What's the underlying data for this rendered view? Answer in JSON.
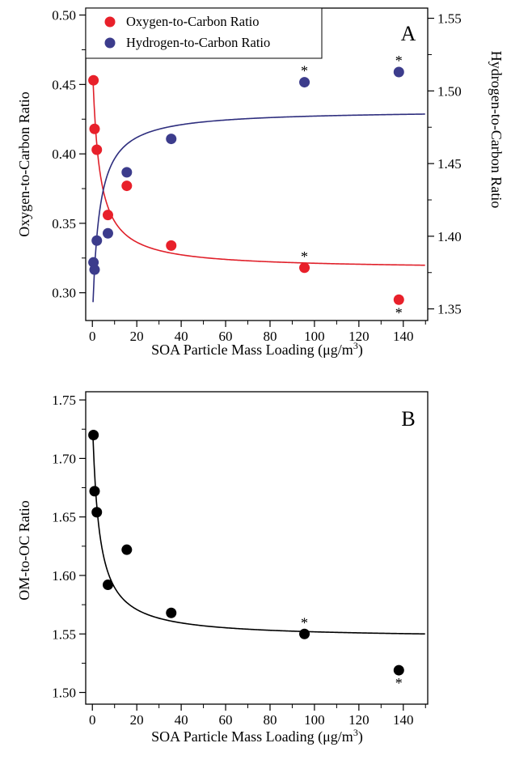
{
  "chart_data": [
    {
      "type": "scatter",
      "panel_label": "A",
      "xlabel_main": "SOA Particle Mass Loading (",
      "xlabel_unit": "μg/m",
      "xlabel_sup": "3",
      "xlabel_close": ")",
      "ylabel": "Oxygen-to-Carbon Ratio",
      "y2label": "Hydrogen-to-Carbon Ratio",
      "xlim": [
        -3,
        151
      ],
      "ylim": [
        0.28,
        0.505
      ],
      "y2lim": [
        1.342,
        1.557
      ],
      "x_ticks": [
        "0",
        "20",
        "40",
        "60",
        "80",
        "100",
        "120",
        "140"
      ],
      "y_ticks": [
        "0.30",
        "0.35",
        "0.40",
        "0.45",
        "0.50"
      ],
      "y2_ticks": [
        "1.35",
        "1.40",
        "1.45",
        "1.50",
        "1.55"
      ],
      "legend_position": "top-left",
      "grid": false,
      "series": [
        {
          "name": "Oxygen-to-Carbon Ratio",
          "axis": "left",
          "color": "#e8202a",
          "curve_color": "#e0202a",
          "points": [
            {
              "x": 0.5,
              "y": 0.453
            },
            {
              "x": 1.0,
              "y": 0.418
            },
            {
              "x": 2.0,
              "y": 0.403
            },
            {
              "x": 7.0,
              "y": 0.356
            },
            {
              "x": 15.5,
              "y": 0.377
            },
            {
              "x": 35.5,
              "y": 0.334
            },
            {
              "x": 95.5,
              "y": 0.318,
              "annotation": "*",
              "annotation_side": "above"
            },
            {
              "x": 138.0,
              "y": 0.295,
              "annotation": "*",
              "annotation_side": "below"
            }
          ]
        },
        {
          "name": "Hydrogen-to-Carbon Ratio",
          "axis": "right",
          "color": "#3c3c8c",
          "curve_color": "#2e2e7e",
          "points": [
            {
              "x": 0.5,
              "y": 1.382
            },
            {
              "x": 1.0,
              "y": 1.377
            },
            {
              "x": 2.0,
              "y": 1.397
            },
            {
              "x": 7.0,
              "y": 1.402
            },
            {
              "x": 15.5,
              "y": 1.444
            },
            {
              "x": 35.5,
              "y": 1.467
            },
            {
              "x": 95.5,
              "y": 1.506,
              "annotation": "*",
              "annotation_side": "above"
            },
            {
              "x": 138.0,
              "y": 1.513,
              "annotation": "*",
              "annotation_side": "above"
            }
          ]
        }
      ]
    },
    {
      "type": "scatter",
      "panel_label": "B",
      "xlabel_main": "SOA Particle Mass Loading (",
      "xlabel_unit": "μg/m",
      "xlabel_sup": "3",
      "xlabel_close": ")",
      "ylabel": "OM-to-OC Ratio",
      "xlim": [
        -3,
        151
      ],
      "ylim": [
        1.49,
        1.757
      ],
      "x_ticks": [
        "0",
        "20",
        "40",
        "60",
        "80",
        "100",
        "120",
        "140"
      ],
      "y_ticks": [
        "1.50",
        "1.55",
        "1.60",
        "1.65",
        "1.70",
        "1.75"
      ],
      "grid": false,
      "series": [
        {
          "color": "#000000",
          "curve_color": "#000000",
          "points": [
            {
              "x": 0.5,
              "y": 1.72
            },
            {
              "x": 1.0,
              "y": 1.672
            },
            {
              "x": 2.0,
              "y": 1.654
            },
            {
              "x": 7.0,
              "y": 1.592
            },
            {
              "x": 15.5,
              "y": 1.622
            },
            {
              "x": 35.5,
              "y": 1.568
            },
            {
              "x": 95.5,
              "y": 1.55,
              "annotation": "*",
              "annotation_side": "above"
            },
            {
              "x": 138.0,
              "y": 1.519,
              "annotation": "*",
              "annotation_side": "below"
            }
          ]
        }
      ]
    }
  ]
}
